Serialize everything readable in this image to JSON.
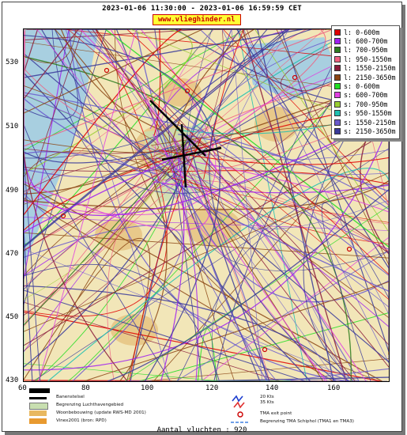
{
  "header": {
    "title": "2023-01-06 11:30:00 - 2023-01-06 16:59:59 CET",
    "site": "www.vlieghinder.nl"
  },
  "axes": {
    "y_ticks": [
      "530",
      "510",
      "490",
      "470",
      "450",
      "430"
    ],
    "x_ticks": [
      "60",
      "80",
      "100",
      "120",
      "140",
      "160"
    ]
  },
  "legend": {
    "items": [
      {
        "label": "l: 0-600m",
        "color": "#e00000"
      },
      {
        "label": "l: 600-700m",
        "color": "#a020f0"
      },
      {
        "label": "l: 700-950m",
        "color": "#2e7d1e"
      },
      {
        "label": "l: 950-1550m",
        "color": "#f06080"
      },
      {
        "label": "l: 1550-2150m",
        "color": "#8a1a3a"
      },
      {
        "label": "l: 2150-3650m",
        "color": "#8b4513"
      },
      {
        "label": "s: 0-600m",
        "color": "#22dd22"
      },
      {
        "label": "s: 600-700m",
        "color": "#e040e0"
      },
      {
        "label": "s: 700-950m",
        "color": "#9acd32"
      },
      {
        "label": "s: 950-1550m",
        "color": "#20c0b0"
      },
      {
        "label": "s: 1550-2150m",
        "color": "#6a5acd"
      },
      {
        "label": "s: 2150-3650m",
        "color": "#3a3a9a"
      }
    ]
  },
  "bottom_legend": {
    "runway": "Banenstelsel",
    "airport_zone": "Begrenzing Luchthavengebied",
    "housing": "Woonbebouwing (update RWS-MD 2001)",
    "vinex": "Vinex2001 (bron: RPD)",
    "wind_1": "20 Kts",
    "wind_2": "35 Kts",
    "tma_exit": "TMA exit point",
    "tma_boundary": "Begrenzing TMA Schiphol  (TMA1 en TMA3)"
  },
  "footer": {
    "flights": "Aantal vluchten : 920"
  }
}
